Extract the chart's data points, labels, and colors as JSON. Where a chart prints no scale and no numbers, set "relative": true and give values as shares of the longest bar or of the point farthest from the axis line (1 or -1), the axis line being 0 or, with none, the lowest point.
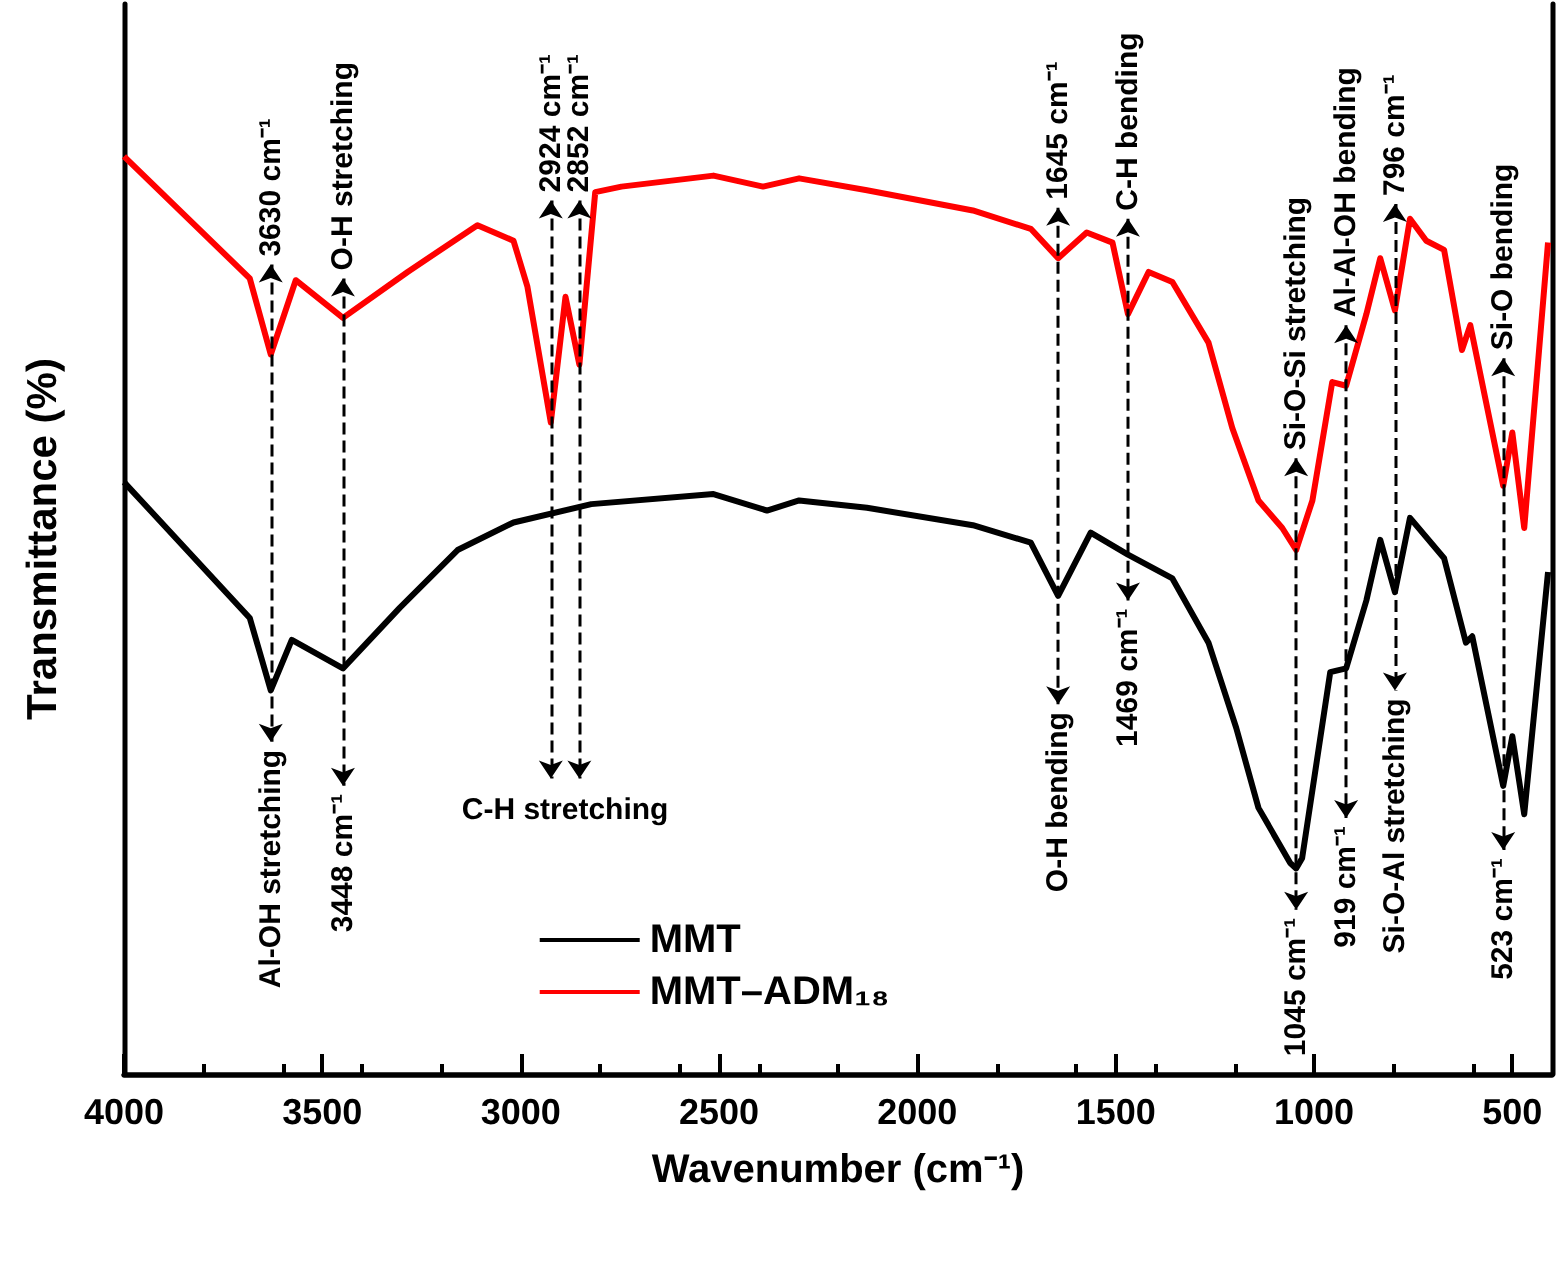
{
  "chart_data": {
    "type": "line",
    "relative": true,
    "xlabel": "Wavenumber (cm⁻¹)",
    "ylabel": "Transmittance (%)",
    "xlim": [
      4000,
      400
    ],
    "xticks": [
      4000,
      3500,
      3000,
      2500,
      2000,
      1500,
      1000,
      500
    ],
    "grid": false,
    "legend": "bottom",
    "marker": "none",
    "line_style": "solid",
    "series": [
      {
        "name": "MMT",
        "color": "#000000",
        "x": [
          4000,
          3683,
          3630,
          3577,
          3448,
          3305,
          3159,
          3018,
          2822,
          2514,
          2379,
          2298,
          2127,
          1860,
          1714,
          1645,
          1563,
          1469,
          1357,
          1266,
          1196,
          1140,
          1060,
          1045,
          1030,
          959,
          919,
          868,
          833,
          796,
          758,
          672,
          617,
          601,
          523,
          500,
          470,
          410
        ],
        "values": [
          0.645,
          0.497,
          0.418,
          0.473,
          0.442,
          0.508,
          0.571,
          0.601,
          0.621,
          0.632,
          0.614,
          0.625,
          0.617,
          0.598,
          0.579,
          0.521,
          0.59,
          0.566,
          0.54,
          0.47,
          0.377,
          0.29,
          0.23,
          0.224,
          0.235,
          0.438,
          0.442,
          0.516,
          0.582,
          0.525,
          0.606,
          0.562,
          0.47,
          0.477,
          0.314,
          0.368,
          0.283,
          0.547
        ]
      },
      {
        "name": "MMT–ADM₁₈",
        "color": "#ff0000",
        "x": [
          4000,
          3683,
          3630,
          3567,
          3448,
          3285,
          3109,
          3018,
          2983,
          2924,
          2887,
          2852,
          2812,
          2746,
          2514,
          2389,
          2298,
          2127,
          1860,
          1714,
          1645,
          1573,
          1508,
          1469,
          1417,
          1357,
          1266,
          1206,
          1140,
          1080,
          1045,
          1004,
          954,
          919,
          868,
          833,
          796,
          758,
          717,
          672,
          627,
          606,
          523,
          500,
          470,
          410
        ],
        "values": [
          1,
          0.867,
          0.784,
          0.865,
          0.824,
          0.874,
          0.925,
          0.908,
          0.858,
          0.71,
          0.847,
          0.773,
          0.961,
          0.967,
          0.979,
          0.967,
          0.976,
          0.963,
          0.941,
          0.921,
          0.889,
          0.917,
          0.906,
          0.828,
          0.874,
          0.863,
          0.797,
          0.704,
          0.625,
          0.595,
          0.571,
          0.625,
          0.754,
          0.75,
          0.828,
          0.889,
          0.832,
          0.932,
          0.908,
          0.898,
          0.789,
          0.816,
          0.641,
          0.699,
          0.595,
          0.906
        ]
      }
    ],
    "annotations": [
      "3630 cm⁻¹",
      "Al-OH stretching",
      "O-H stretching",
      "3448 cm⁻¹",
      "2924 cm⁻¹",
      "2852 cm⁻¹",
      "C-H stretching",
      "1645 cm⁻¹",
      "O-H bending",
      "C-H bending",
      "1469 cm⁻¹",
      "Si-O-Si stretching",
      "1045 cm⁻¹",
      "Al-Al-OH bending",
      "919 cm⁻¹",
      "796 cm⁻¹",
      "Si-O-Al stretching",
      "Si-O bending",
      "523 cm⁻¹"
    ]
  }
}
